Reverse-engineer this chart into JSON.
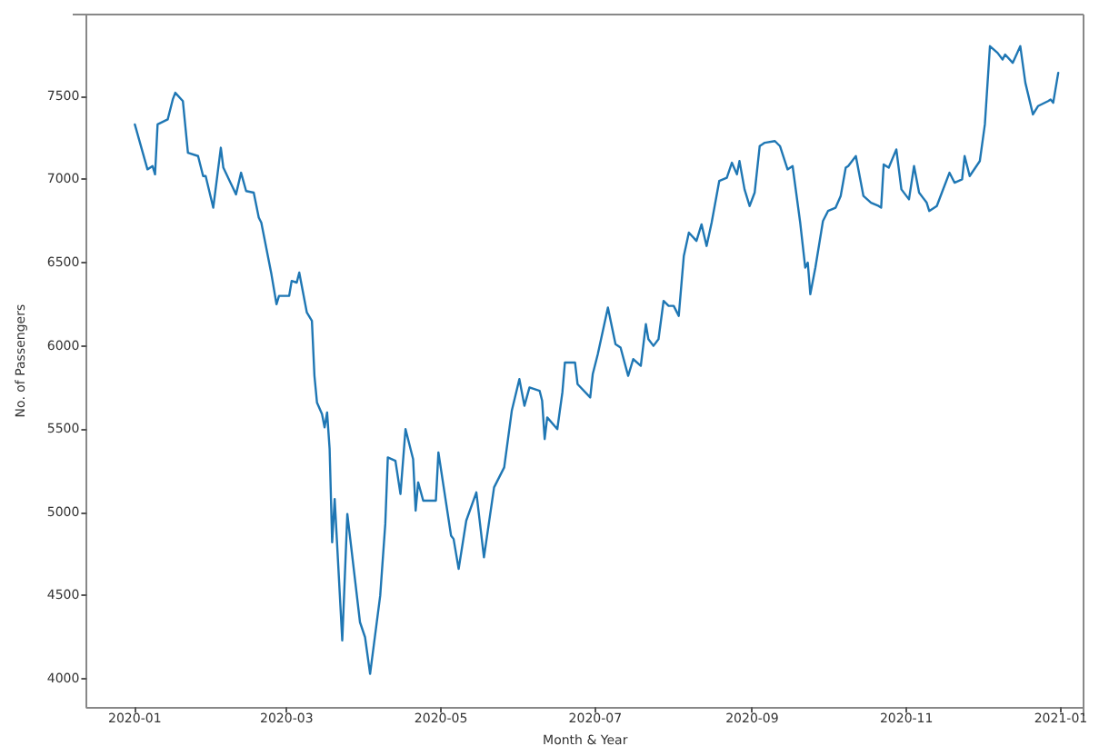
{
  "chart_data": {
    "type": "line",
    "xlabel": "Month & Year",
    "ylabel": "No. of Passengers",
    "x": [
      "2020-01-01",
      "2020-01-06",
      "2020-01-08",
      "2020-01-09",
      "2020-01-10",
      "2020-01-14",
      "2020-01-16",
      "2020-01-17",
      "2020-01-20",
      "2020-01-22",
      "2020-01-26",
      "2020-01-28",
      "2020-01-29",
      "2020-02-01",
      "2020-02-04",
      "2020-02-05",
      "2020-02-10",
      "2020-02-12",
      "2020-02-14",
      "2020-02-17",
      "2020-02-19",
      "2020-02-20",
      "2020-02-24",
      "2020-02-26",
      "2020-02-27",
      "2020-03-02",
      "2020-03-03",
      "2020-03-05",
      "2020-03-06",
      "2020-03-09",
      "2020-03-11",
      "2020-03-12",
      "2020-03-13",
      "2020-03-15",
      "2020-03-16",
      "2020-03-17",
      "2020-03-18",
      "2020-03-19",
      "2020-03-20",
      "2020-03-23",
      "2020-03-25",
      "2020-03-26",
      "2020-03-30",
      "2020-04-01",
      "2020-04-03",
      "2020-04-07",
      "2020-04-09",
      "2020-04-10",
      "2020-04-13",
      "2020-04-15",
      "2020-04-17",
      "2020-04-20",
      "2020-04-21",
      "2020-04-22",
      "2020-04-24",
      "2020-04-29",
      "2020-04-30",
      "2020-05-05",
      "2020-05-06",
      "2020-05-08",
      "2020-05-11",
      "2020-05-15",
      "2020-05-18",
      "2020-05-22",
      "2020-05-26",
      "2020-05-29",
      "2020-06-01",
      "2020-06-03",
      "2020-06-05",
      "2020-06-09",
      "2020-06-10",
      "2020-06-11",
      "2020-06-12",
      "2020-06-16",
      "2020-06-18",
      "2020-06-19",
      "2020-06-23",
      "2020-06-24",
      "2020-06-29",
      "2020-06-30",
      "2020-07-02",
      "2020-07-06",
      "2020-07-09",
      "2020-07-11",
      "2020-07-14",
      "2020-07-16",
      "2020-07-19",
      "2020-07-21",
      "2020-07-22",
      "2020-07-24",
      "2020-07-26",
      "2020-07-28",
      "2020-07-30",
      "2020-08-01",
      "2020-08-03",
      "2020-08-05",
      "2020-08-07",
      "2020-08-10",
      "2020-08-12",
      "2020-08-14",
      "2020-08-16",
      "2020-08-19",
      "2020-08-22",
      "2020-08-24",
      "2020-08-26",
      "2020-08-27",
      "2020-08-29",
      "2020-08-31",
      "2020-09-02",
      "2020-09-04",
      "2020-09-06",
      "2020-09-10",
      "2020-09-12",
      "2020-09-15",
      "2020-09-17",
      "2020-09-20",
      "2020-09-22",
      "2020-09-23",
      "2020-09-24",
      "2020-09-26",
      "2020-09-29",
      "2020-10-01",
      "2020-10-04",
      "2020-10-06",
      "2020-10-08",
      "2020-10-09",
      "2020-10-12",
      "2020-10-15",
      "2020-10-18",
      "2020-10-21",
      "2020-10-22",
      "2020-10-23",
      "2020-10-25",
      "2020-10-28",
      "2020-10-30",
      "2020-11-02",
      "2020-11-04",
      "2020-11-06",
      "2020-11-09",
      "2020-11-10",
      "2020-11-13",
      "2020-11-15",
      "2020-11-18",
      "2020-11-20",
      "2020-11-23",
      "2020-11-24",
      "2020-11-26",
      "2020-11-30",
      "2020-12-02",
      "2020-12-04",
      "2020-12-07",
      "2020-12-09",
      "2020-12-10",
      "2020-12-13",
      "2020-12-16",
      "2020-12-18",
      "2020-12-21",
      "2020-12-23",
      "2020-12-27",
      "2020-12-28",
      "2020-12-29",
      "2020-12-31"
    ],
    "series": [
      {
        "color": "#1f77b4",
        "values": [
          7330,
          7060,
          7080,
          7030,
          7330,
          7360,
          7480,
          7520,
          7470,
          7160,
          7140,
          7020,
          7020,
          6830,
          7190,
          7070,
          6910,
          7040,
          6930,
          6920,
          6770,
          6740,
          6430,
          6250,
          6300,
          6300,
          6390,
          6380,
          6440,
          6200,
          6150,
          5820,
          5660,
          5590,
          5510,
          5600,
          5380,
          4820,
          5080,
          4230,
          4990,
          4860,
          4340,
          4250,
          4030,
          4500,
          4930,
          5330,
          5310,
          5110,
          5500,
          5320,
          5010,
          5180,
          5070,
          5070,
          5360,
          4860,
          4840,
          4660,
          4950,
          5120,
          4730,
          5150,
          5270,
          5610,
          5800,
          5640,
          5750,
          5730,
          5670,
          5440,
          5570,
          5500,
          5720,
          5900,
          5900,
          5770,
          5690,
          5830,
          5950,
          6230,
          6010,
          5990,
          5820,
          5920,
          5880,
          6130,
          6040,
          6000,
          6040,
          6270,
          6240,
          6240,
          6180,
          6540,
          6680,
          6630,
          6730,
          6600,
          6740,
          6990,
          7010,
          7100,
          7030,
          7110,
          6940,
          6840,
          6920,
          7200,
          7220,
          7230,
          7200,
          7060,
          7080,
          6740,
          6470,
          6500,
          6310,
          6470,
          6750,
          6810,
          6830,
          6900,
          7070,
          7080,
          7140,
          6900,
          6860,
          6840,
          6830,
          7090,
          7070,
          7180,
          6940,
          6880,
          7080,
          6920,
          6860,
          6810,
          6840,
          6920,
          7040,
          6980,
          7000,
          7140,
          7020,
          7110,
          7330,
          7800,
          7760,
          7720,
          7750,
          7700,
          7800,
          7580,
          7390,
          7440,
          7470,
          7480,
          7460,
          7640
        ]
      }
    ],
    "xlim": [
      "2019-12-13",
      "2021-01-10"
    ],
    "xticks": [
      "2020-01",
      "2020-03",
      "2020-05",
      "2020-07",
      "2020-09",
      "2020-11",
      "2021-01"
    ],
    "ylim": [
      3830,
      7990
    ],
    "yticks": [
      4000,
      4500,
      5000,
      5500,
      6000,
      6500,
      7000,
      7500
    ],
    "grid": false,
    "marker": "none",
    "line_style": "solid"
  }
}
